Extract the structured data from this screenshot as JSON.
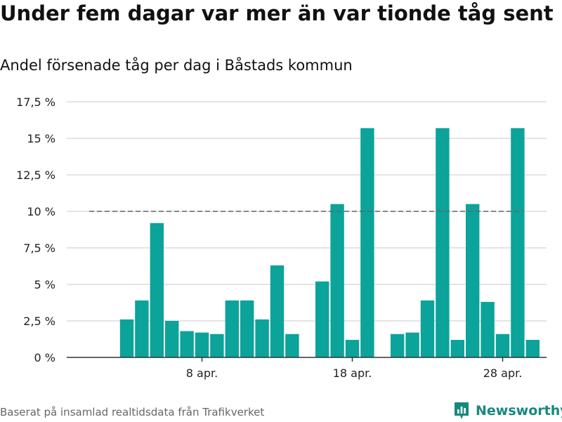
{
  "title": "Under fem dagar var mer än var tionde tåg sent",
  "subtitle": "Andel försenade tåg per dag i Båstads kommun",
  "source": "Baserat på insamlad realtidsdata från Trafikverket",
  "brand": {
    "name": "Newsworthy",
    "icon": "newsworthy-logo-icon",
    "color": "#16897e"
  },
  "chart_data": {
    "type": "bar",
    "bar_color": "#0ba39a",
    "reference_line": {
      "value": 10,
      "style": "dashed",
      "color": "#666666"
    },
    "grid": true,
    "x_domain": [
      "2020-04-01",
      "2020-04-30"
    ],
    "x_ticks": [
      {
        "date": "2020-04-08",
        "label": "8 apr."
      },
      {
        "date": "2020-04-18",
        "label": "18 apr."
      },
      {
        "date": "2020-04-28",
        "label": "28 apr."
      }
    ],
    "y_ticks": [
      {
        "value": 0,
        "label": "0 %"
      },
      {
        "value": 2.5,
        "label": "2,5 %"
      },
      {
        "value": 5,
        "label": "5 %"
      },
      {
        "value": 7.5,
        "label": "7,5 %"
      },
      {
        "value": 10,
        "label": "10 %"
      },
      {
        "value": 12.5,
        "label": "12,5 %"
      },
      {
        "value": 15,
        "label": "15 %"
      },
      {
        "value": 17.5,
        "label": "17,5 %"
      }
    ],
    "ylim": [
      0,
      17.5
    ],
    "series": [
      {
        "points": [
          {
            "date": "2020-04-03",
            "value": 2.6
          },
          {
            "date": "2020-04-04",
            "value": 3.9
          },
          {
            "date": "2020-04-05",
            "value": 9.2
          },
          {
            "date": "2020-04-06",
            "value": 2.5
          },
          {
            "date": "2020-04-07",
            "value": 1.8
          },
          {
            "date": "2020-04-08",
            "value": 1.7
          },
          {
            "date": "2020-04-09",
            "value": 1.6
          },
          {
            "date": "2020-04-10",
            "value": 3.9
          },
          {
            "date": "2020-04-11",
            "value": 3.9
          },
          {
            "date": "2020-04-12",
            "value": 2.6
          },
          {
            "date": "2020-04-13",
            "value": 6.3
          },
          {
            "date": "2020-04-14",
            "value": 1.6
          },
          {
            "date": "2020-04-16",
            "value": 5.2
          },
          {
            "date": "2020-04-17",
            "value": 10.5
          },
          {
            "date": "2020-04-18",
            "value": 1.2
          },
          {
            "date": "2020-04-19",
            "value": 15.7
          },
          {
            "date": "2020-04-21",
            "value": 1.6
          },
          {
            "date": "2020-04-22",
            "value": 1.7
          },
          {
            "date": "2020-04-23",
            "value": 3.9
          },
          {
            "date": "2020-04-24",
            "value": 15.7
          },
          {
            "date": "2020-04-25",
            "value": 1.2
          },
          {
            "date": "2020-04-26",
            "value": 10.5
          },
          {
            "date": "2020-04-27",
            "value": 3.8
          },
          {
            "date": "2020-04-28",
            "value": 1.6
          },
          {
            "date": "2020-04-29",
            "value": 15.7
          },
          {
            "date": "2020-04-30",
            "value": 1.2
          }
        ]
      }
    ]
  }
}
